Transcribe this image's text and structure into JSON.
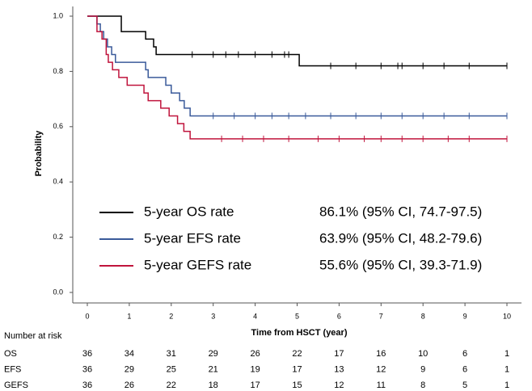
{
  "chart_data": {
    "type": "step",
    "y_label": "Probability",
    "x_label": "Time from HSCT (year)",
    "xlim": [
      0,
      10
    ],
    "xticks": [
      0,
      1,
      2,
      3,
      4,
      5,
      6,
      7,
      8,
      9,
      10
    ],
    "ylim": [
      0,
      1
    ],
    "yticks": [
      {
        "value": 0,
        "label": "0.0"
      },
      0.2,
      0.4,
      0.6,
      0.8,
      {
        "value": 1,
        "label": "1.0"
      }
    ],
    "series": [
      {
        "name": "5-year OS rate",
        "color": "#000000",
        "x": [
          0,
          0.81,
          1.39,
          1.58,
          1.64,
          5.05,
          10
        ],
        "values": [
          1,
          0.944,
          0.917,
          0.889,
          0.861,
          0.82,
          0.82
        ],
        "censored": [
          2.5,
          3.0,
          3.3,
          3.6,
          4.0,
          4.4,
          4.7,
          4.8,
          5.8,
          6.4,
          7.0,
          7.4,
          7.5,
          8.0,
          8.5,
          9.1,
          10
        ]
      },
      {
        "name": "5-year EFS rate",
        "color": "#3a5a9a",
        "x": [
          0,
          0.23,
          0.31,
          0.39,
          0.48,
          0.58,
          0.67,
          1.39,
          1.45,
          1.87,
          2.0,
          2.2,
          2.31,
          2.45,
          10
        ],
        "values": [
          1,
          0.972,
          0.944,
          0.917,
          0.889,
          0.861,
          0.833,
          0.806,
          0.778,
          0.75,
          0.722,
          0.694,
          0.667,
          0.639,
          0.639
        ],
        "censored": [
          3.0,
          3.5,
          4.0,
          4.4,
          4.8,
          5.2,
          5.8,
          6.4,
          7.0,
          7.5,
          8.0,
          8.5,
          9.1,
          10
        ]
      },
      {
        "name": "5-year GEFS rate",
        "color": "#c0143c",
        "x": [
          0,
          0.23,
          0.35,
          0.45,
          0.5,
          0.6,
          0.75,
          0.95,
          1.35,
          1.45,
          1.75,
          1.95,
          2.15,
          2.3,
          2.45,
          10
        ],
        "values": [
          1,
          0.944,
          0.917,
          0.861,
          0.833,
          0.806,
          0.778,
          0.75,
          0.722,
          0.694,
          0.667,
          0.639,
          0.611,
          0.583,
          0.556,
          0.556
        ],
        "censored": [
          3.2,
          3.7,
          4.2,
          4.8,
          5.5,
          6.0,
          6.6,
          7.0,
          7.5,
          8.0,
          8.6,
          9.1,
          10
        ]
      }
    ],
    "annotations": [
      "86.1% (95% CI, 74.7-97.5)",
      "63.9% (95% CI, 48.2-79.6)",
      "55.6% (95% CI, 39.3-71.9)"
    ],
    "risk_table": {
      "title": "Number at risk",
      "rows": [
        {
          "label": "OS",
          "values": [
            36,
            34,
            31,
            29,
            26,
            22,
            17,
            16,
            10,
            6,
            1
          ]
        },
        {
          "label": "EFS",
          "values": [
            36,
            29,
            25,
            21,
            19,
            17,
            13,
            12,
            9,
            6,
            1
          ]
        },
        {
          "label": "GEFS",
          "values": [
            36,
            26,
            22,
            18,
            17,
            15,
            12,
            11,
            8,
            5,
            1
          ]
        }
      ]
    }
  }
}
